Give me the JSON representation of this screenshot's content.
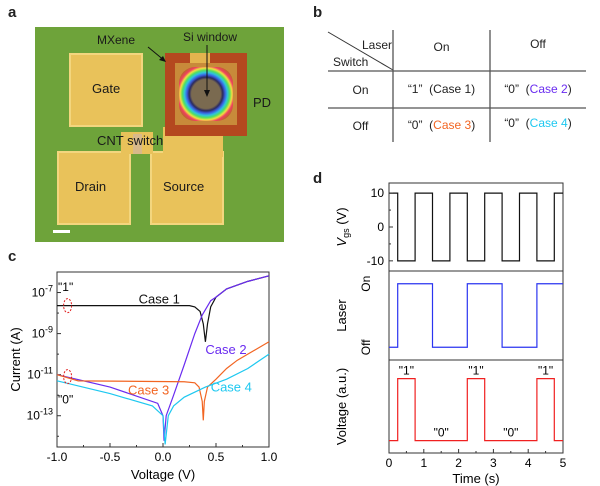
{
  "panel_labels": {
    "a": "a",
    "b": "b",
    "c": "c",
    "d": "d"
  },
  "panel_a": {
    "labels": {
      "gate": "Gate",
      "drain": "Drain",
      "source": "Source",
      "pd": "PD",
      "mxene": "MXene",
      "si_window": "Si window",
      "cnt_switch": "CNT switch"
    },
    "colors": {
      "substrate": "#6ea33a",
      "pad": "#e9c25a",
      "mxene": "#b4481f",
      "si": "#7a6a50"
    }
  },
  "panel_b": {
    "corner_col": "Laser",
    "corner_row": "Switch",
    "col_headers": [
      "On",
      "Off"
    ],
    "rows": [
      {
        "label": "On",
        "cells": [
          {
            "value": "“1”",
            "case": "(Case 1)",
            "color": "#333333"
          },
          {
            "value": "“0”",
            "case": "Case 2",
            "color": "#6a2cf0"
          }
        ]
      },
      {
        "label": "Off",
        "cells": [
          {
            "value": "“0”",
            "case": "Case 3",
            "color": "#f26522"
          },
          {
            "value": "“0”",
            "case": "Case 4",
            "color": "#1ec8f0"
          }
        ]
      }
    ]
  },
  "chart_data": [
    {
      "type": "line",
      "panel": "c",
      "xlabel": "Voltage (V)",
      "ylabel": "Current (A)",
      "xlim": [
        -1.0,
        1.0
      ],
      "ylim": [
        3e-15,
        1e-06
      ],
      "yscale": "log",
      "xticks": [
        "-1.0",
        "-0.5",
        "0.0",
        "0.5",
        "1.0"
      ],
      "yticks": [
        {
          "base": "10",
          "exp": "-7"
        },
        {
          "base": "10",
          "exp": "-9"
        },
        {
          "base": "10",
          "exp": "-11"
        },
        {
          "base": "10",
          "exp": "-13"
        }
      ],
      "annotations": [
        "\"1\"",
        "\"0\""
      ],
      "series": [
        {
          "name": "Case 1",
          "color": "#111111",
          "points": [
            [
              -1,
              2.3e-08
            ],
            [
              0.25,
              2.3e-08
            ],
            [
              0.3,
              2e-08
            ],
            [
              0.35,
              1.2e-08
            ],
            [
              0.38,
              3e-09
            ],
            [
              0.4,
              4e-10
            ],
            [
              0.42,
              3e-09
            ],
            [
              0.45,
              2e-08
            ],
            [
              0.5,
              6e-08
            ],
            [
              0.6,
              1.5e-07
            ],
            [
              0.8,
              3.5e-07
            ],
            [
              1.0,
              6.5e-07
            ]
          ]
        },
        {
          "name": "Case 2",
          "color": "#6a2cf0",
          "points": [
            [
              -1,
              1e-11
            ],
            [
              -0.5,
              2.5e-12
            ],
            [
              -0.05,
              4e-13
            ],
            [
              0.0,
              1e-13
            ],
            [
              0.01,
              6e-15
            ],
            [
              0.03,
              1e-13
            ],
            [
              0.1,
              1e-12
            ],
            [
              0.2,
              3e-11
            ],
            [
              0.3,
              1e-09
            ],
            [
              0.37,
              8e-09
            ],
            [
              0.45,
              4e-08
            ],
            [
              0.5,
              6e-08
            ],
            [
              0.6,
              1.5e-07
            ],
            [
              0.8,
              3.5e-07
            ],
            [
              1.0,
              6.5e-07
            ]
          ]
        },
        {
          "name": "Case 3",
          "color": "#f26522",
          "points": [
            [
              -1,
              1e-11
            ],
            [
              -0.8,
              5e-12
            ],
            [
              0.2,
              4.5e-12
            ],
            [
              0.3,
              4e-12
            ],
            [
              0.34,
              2.5e-12
            ],
            [
              0.37,
              5e-13
            ],
            [
              0.38,
              6e-14
            ],
            [
              0.39,
              5e-13
            ],
            [
              0.42,
              2.5e-12
            ],
            [
              0.5,
              6e-12
            ],
            [
              0.6,
              2e-11
            ],
            [
              0.7,
              5e-11
            ],
            [
              0.8,
              1e-10
            ],
            [
              1.0,
              4e-10
            ]
          ]
        },
        {
          "name": "Case 4",
          "color": "#1ec8f0",
          "points": [
            [
              -1,
              5e-12
            ],
            [
              -0.5,
              1.2e-12
            ],
            [
              -0.1,
              3e-13
            ],
            [
              0.0,
              1e-13
            ],
            [
              0.02,
              4e-15
            ],
            [
              0.05,
              1e-13
            ],
            [
              0.1,
              3e-13
            ],
            [
              0.2,
              8e-13
            ],
            [
              0.4,
              2.5e-12
            ],
            [
              0.6,
              6e-12
            ],
            [
              0.8,
              2e-11
            ],
            [
              1.0,
              1e-10
            ]
          ]
        }
      ]
    },
    {
      "type": "line",
      "panel": "d",
      "xlabel": "Time (s)",
      "xlim": [
        0,
        5
      ],
      "xticks": [
        "0",
        "1",
        "2",
        "3",
        "4",
        "5"
      ],
      "subplots": [
        {
          "ylabel": "V",
          "ylabel_sub": "gs",
          "ylabel_unit": " (V)",
          "color": "#111111",
          "yticks": [
            "10",
            "0",
            "-10"
          ],
          "ylim": [
            -13,
            13
          ],
          "points": [
            [
              0,
              10
            ],
            [
              0.25,
              10
            ],
            [
              0.25,
              -10
            ],
            [
              0.75,
              -10
            ],
            [
              0.75,
              10
            ],
            [
              1.25,
              10
            ],
            [
              1.25,
              -10
            ],
            [
              1.75,
              -10
            ],
            [
              1.75,
              10
            ],
            [
              2.25,
              10
            ],
            [
              2.25,
              -10
            ],
            [
              2.75,
              -10
            ],
            [
              2.75,
              10
            ],
            [
              3.25,
              10
            ],
            [
              3.25,
              -10
            ],
            [
              3.75,
              -10
            ],
            [
              3.75,
              10
            ],
            [
              4.25,
              10
            ],
            [
              4.25,
              -10
            ],
            [
              4.75,
              -10
            ],
            [
              4.75,
              10
            ],
            [
              5,
              10
            ]
          ]
        },
        {
          "ylabel": "Laser",
          "color": "#2b35f0",
          "yticks": [
            "On",
            "Off"
          ],
          "ylim": [
            -0.2,
            1.2
          ],
          "points": [
            [
              0,
              0
            ],
            [
              0.25,
              0
            ],
            [
              0.25,
              1
            ],
            [
              1.25,
              1
            ],
            [
              1.25,
              0
            ],
            [
              2.25,
              0
            ],
            [
              2.25,
              1
            ],
            [
              3.25,
              1
            ],
            [
              3.25,
              0
            ],
            [
              4.25,
              0
            ],
            [
              4.25,
              1
            ],
            [
              5,
              1
            ]
          ]
        },
        {
          "ylabel": "Voltage (a.u.)",
          "color": "#f02020",
          "yticks": [],
          "ylim": [
            -0.2,
            1.3
          ],
          "labels_high": "\"1\"",
          "labels_low": "\"0\"",
          "points": [
            [
              0,
              0
            ],
            [
              0.25,
              0
            ],
            [
              0.25,
              1
            ],
            [
              0.75,
              1
            ],
            [
              0.75,
              0
            ],
            [
              2.25,
              0
            ],
            [
              2.25,
              1
            ],
            [
              2.75,
              1
            ],
            [
              2.75,
              0
            ],
            [
              4.25,
              0
            ],
            [
              4.25,
              1
            ],
            [
              4.75,
              1
            ],
            [
              4.75,
              0
            ],
            [
              5,
              0
            ]
          ]
        }
      ]
    }
  ]
}
